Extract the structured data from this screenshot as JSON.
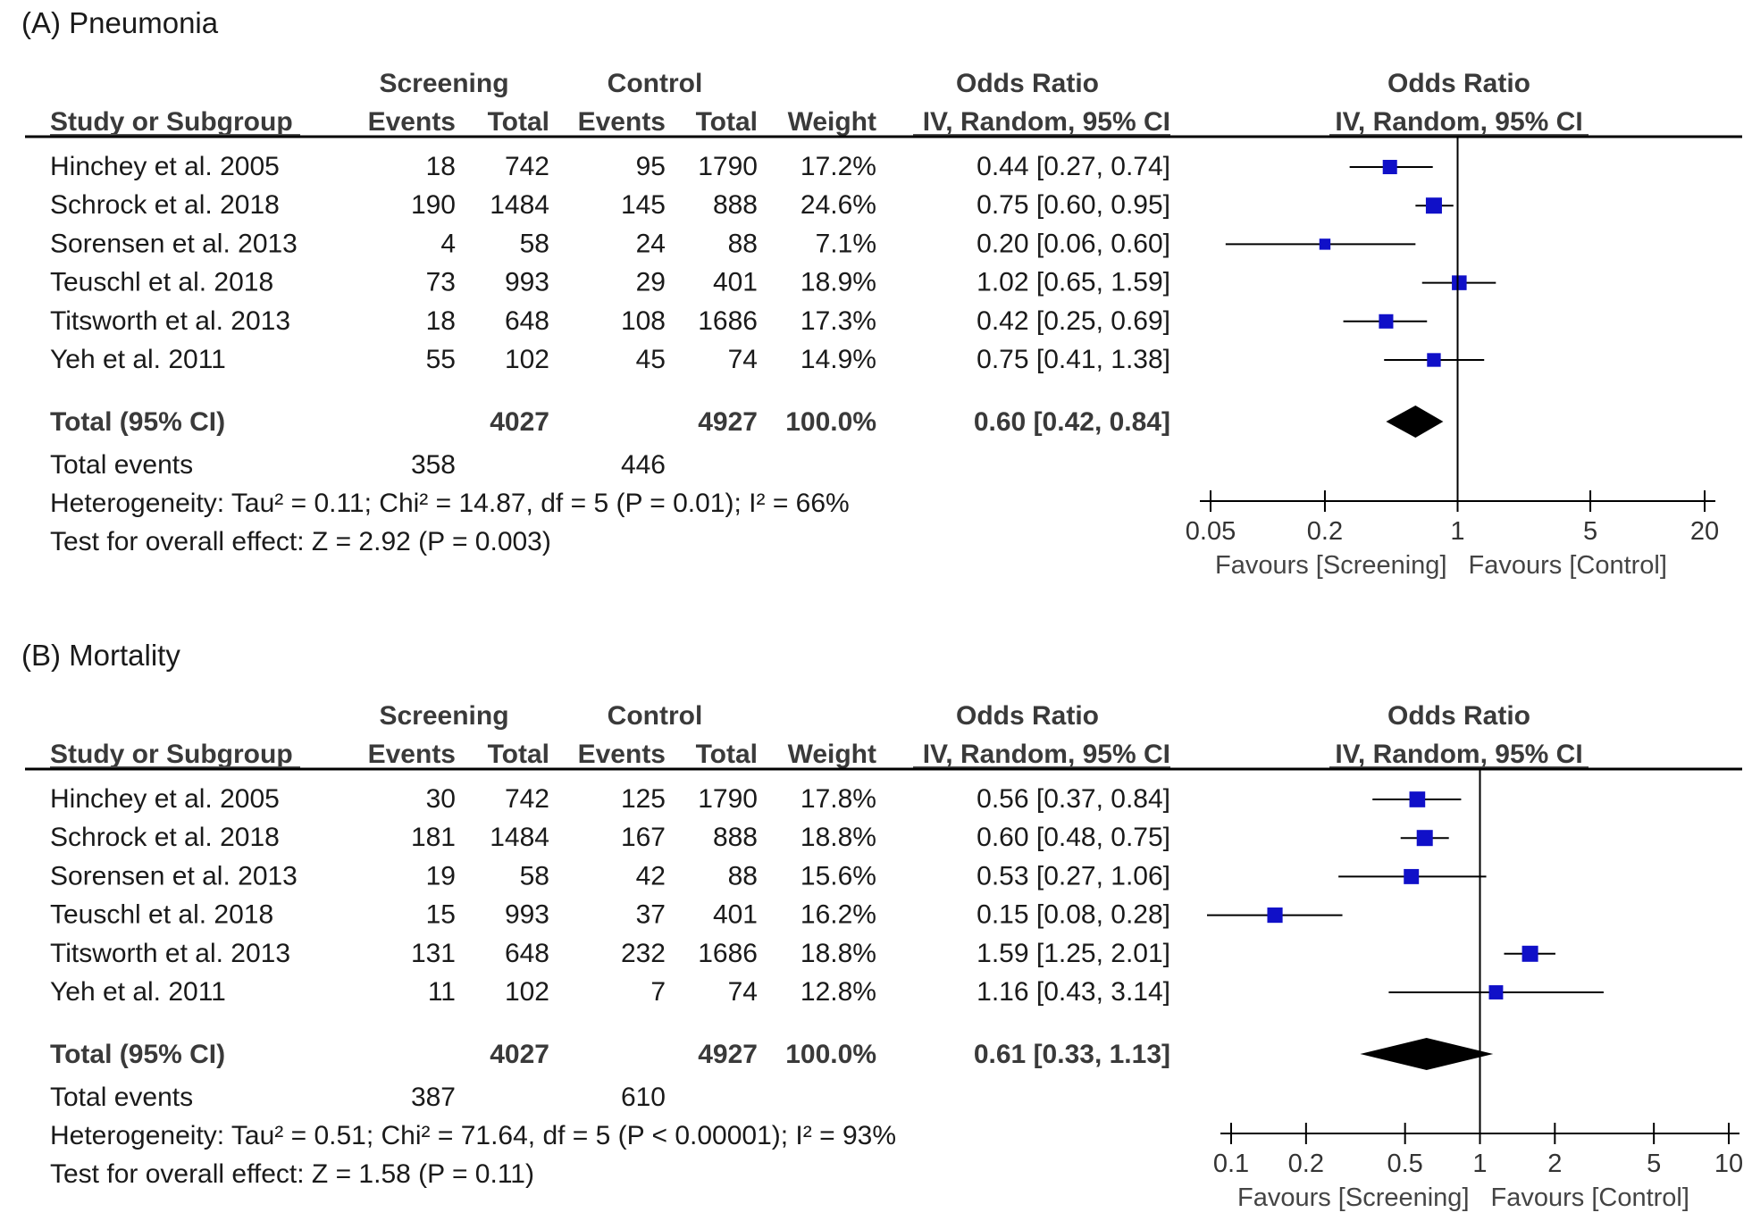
{
  "chart_data": [
    {
      "type": "forest",
      "title": "(A) Pneumonia",
      "headers": {
        "group_screening": "Screening",
        "group_control": "Control",
        "effect_group": "Odds Ratio",
        "plot_group": "Odds Ratio",
        "study": "Study or Subgroup",
        "s_events": "Events",
        "s_total": "Total",
        "c_events": "Events",
        "c_total": "Total",
        "weight": "Weight",
        "method": "IV, Random, 95% CI",
        "plot_method": "IV, Random, 95% CI"
      },
      "studies": [
        {
          "name": "Hinchey et al. 2005",
          "s_events": "18",
          "s_total": "742",
          "c_events": "95",
          "c_total": "1790",
          "weight": "17.2%",
          "ci_text": "0.44 [0.27, 0.74]",
          "or": 0.44,
          "lo": 0.27,
          "hi": 0.74,
          "w": 17.2
        },
        {
          "name": "Schrock et al. 2018",
          "s_events": "190",
          "s_total": "1484",
          "c_events": "145",
          "c_total": "888",
          "weight": "24.6%",
          "ci_text": "0.75 [0.60, 0.95]",
          "or": 0.75,
          "lo": 0.6,
          "hi": 0.95,
          "w": 24.6
        },
        {
          "name": "Sorensen et al. 2013",
          "s_events": "4",
          "s_total": "58",
          "c_events": "24",
          "c_total": "88",
          "weight": "7.1%",
          "ci_text": "0.20 [0.06, 0.60]",
          "or": 0.2,
          "lo": 0.06,
          "hi": 0.6,
          "w": 7.1
        },
        {
          "name": "Teuschl et al. 2018",
          "s_events": "73",
          "s_total": "993",
          "c_events": "29",
          "c_total": "401",
          "weight": "18.9%",
          "ci_text": "1.02 [0.65, 1.59]",
          "or": 1.02,
          "lo": 0.65,
          "hi": 1.59,
          "w": 18.9
        },
        {
          "name": "Titsworth et al. 2013",
          "s_events": "18",
          "s_total": "648",
          "c_events": "108",
          "c_total": "1686",
          "weight": "17.3%",
          "ci_text": "0.42 [0.25, 0.69]",
          "or": 0.42,
          "lo": 0.25,
          "hi": 0.69,
          "w": 17.3
        },
        {
          "name": "Yeh et al. 2011",
          "s_events": "55",
          "s_total": "102",
          "c_events": "45",
          "c_total": "74",
          "weight": "14.9%",
          "ci_text": "0.75 [0.41, 1.38]",
          "or": 0.75,
          "lo": 0.41,
          "hi": 1.38,
          "w": 14.9
        }
      ],
      "total": {
        "label": "Total (95% CI)",
        "s_total": "4027",
        "c_total": "4927",
        "weight": "100.0%",
        "ci_text": "0.60 [0.42, 0.84]",
        "or": 0.6,
        "lo": 0.42,
        "hi": 0.84
      },
      "total_events": {
        "label": "Total events",
        "s": "358",
        "c": "446"
      },
      "heterogeneity": "Heterogeneity: Tau² = 0.11; Chi² = 14.87, df = 5 (P = 0.01); I² = 66%",
      "overall_effect": "Test for overall effect: Z = 2.92 (P = 0.003)",
      "axis": {
        "scale": "log",
        "range": [
          0.05,
          20
        ],
        "ticks": [
          0.05,
          0.2,
          1,
          5,
          20
        ],
        "tick_labels": [
          "0.05",
          "0.2",
          "1",
          "5",
          "20"
        ]
      },
      "favours_left": "Favours [Screening]",
      "favours_right": "Favours [Control]"
    },
    {
      "type": "forest",
      "title": "(B) Mortality",
      "headers": {
        "group_screening": "Screening",
        "group_control": "Control",
        "effect_group": "Odds Ratio",
        "plot_group": "Odds Ratio",
        "study": "Study or Subgroup",
        "s_events": "Events",
        "s_total": "Total",
        "c_events": "Events",
        "c_total": "Total",
        "weight": "Weight",
        "method": "IV, Random, 95% CI",
        "plot_method": "IV, Random, 95% CI"
      },
      "studies": [
        {
          "name": "Hinchey et al. 2005",
          "s_events": "30",
          "s_total": "742",
          "c_events": "125",
          "c_total": "1790",
          "weight": "17.8%",
          "ci_text": "0.56 [0.37, 0.84]",
          "or": 0.56,
          "lo": 0.37,
          "hi": 0.84,
          "w": 17.8
        },
        {
          "name": "Schrock et al. 2018",
          "s_events": "181",
          "s_total": "1484",
          "c_events": "167",
          "c_total": "888",
          "weight": "18.8%",
          "ci_text": "0.60 [0.48, 0.75]",
          "or": 0.6,
          "lo": 0.48,
          "hi": 0.75,
          "w": 18.8
        },
        {
          "name": "Sorensen et al. 2013",
          "s_events": "19",
          "s_total": "58",
          "c_events": "42",
          "c_total": "88",
          "weight": "15.6%",
          "ci_text": "0.53 [0.27, 1.06]",
          "or": 0.53,
          "lo": 0.27,
          "hi": 1.06,
          "w": 15.6
        },
        {
          "name": "Teuschl et al. 2018",
          "s_events": "15",
          "s_total": "993",
          "c_events": "37",
          "c_total": "401",
          "weight": "16.2%",
          "ci_text": "0.15 [0.08, 0.28]",
          "or": 0.15,
          "lo": 0.08,
          "hi": 0.28,
          "w": 16.2
        },
        {
          "name": "Titsworth et al. 2013",
          "s_events": "131",
          "s_total": "648",
          "c_events": "232",
          "c_total": "1686",
          "weight": "18.8%",
          "ci_text": "1.59 [1.25, 2.01]",
          "or": 1.59,
          "lo": 1.25,
          "hi": 2.01,
          "w": 18.8
        },
        {
          "name": "Yeh et al. 2011",
          "s_events": "11",
          "s_total": "102",
          "c_events": "7",
          "c_total": "74",
          "weight": "12.8%",
          "ci_text": "1.16 [0.43, 3.14]",
          "or": 1.16,
          "lo": 0.43,
          "hi": 3.14,
          "w": 12.8
        }
      ],
      "total": {
        "label": "Total (95% CI)",
        "s_total": "4027",
        "c_total": "4927",
        "weight": "100.0%",
        "ci_text": "0.61 [0.33, 1.13]",
        "or": 0.61,
        "lo": 0.33,
        "hi": 1.13
      },
      "total_events": {
        "label": "Total events",
        "s": "387",
        "c": "610"
      },
      "heterogeneity": "Heterogeneity: Tau² = 0.51; Chi² = 71.64, df = 5 (P < 0.00001); I² = 93%",
      "overall_effect": "Test for overall effect: Z = 1.58 (P = 0.11)",
      "axis": {
        "scale": "log",
        "range": [
          0.1,
          10
        ],
        "ticks": [
          0.1,
          0.2,
          0.5,
          1,
          2,
          5,
          10
        ],
        "tick_labels": [
          "0.1",
          "0.2",
          "0.5",
          "1",
          "2",
          "5",
          "10"
        ]
      },
      "favours_left": "Favours [Screening]",
      "favours_right": "Favours [Control]"
    }
  ],
  "colors": {
    "marker": "#1010c8",
    "diamond": "#000000",
    "rule": "#000000"
  }
}
